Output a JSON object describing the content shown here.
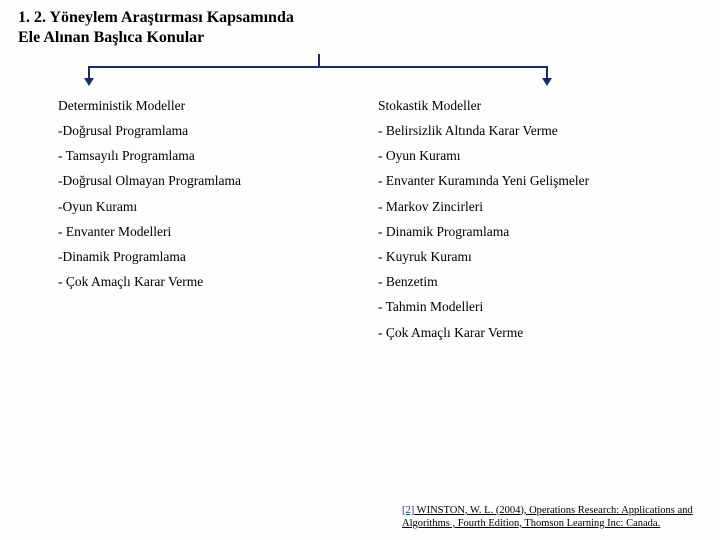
{
  "title_line1": "1. 2.  Yöneylem Araştırması Kapsamında",
  "title_line2": "Ele Alınan Başlıca Konular",
  "left": {
    "heading": "Deterministik Modeller",
    "items": [
      "-Doğrusal Programlama",
      "- Tamsayılı Programlama",
      "-Doğrusal Olmayan Programlama",
      "-Oyun Kuramı",
      "- Envanter Modelleri",
      "-Dinamik Programlama",
      "- Çok Amaçlı Karar Verme"
    ]
  },
  "right": {
    "heading": "Stokastik Modeller",
    "items": [
      "- Belirsizlik Altında Karar Verme",
      "- Oyun Kuramı",
      "- Envanter Kuramında Yeni Gelişmeler",
      "- Markov Zincirleri",
      "- Dinamik Programlama",
      "- Kuyruk Kuramı",
      "- Benzetim",
      "- Tahmin Modelleri",
      "- Çok Amaçlı Karar Verme"
    ]
  },
  "footnote": {
    "ref": "[2]",
    "text": " WINSTON, W. L. (2004), Operations Research: Applications and Algorithms , Fourth Edition,  Thomson Learning Inc: Canada."
  },
  "colors": {
    "bracket": "#1a2a66",
    "ref_link": "#0b3ea8",
    "text": "#000000",
    "bg": "#fdfdfc"
  }
}
